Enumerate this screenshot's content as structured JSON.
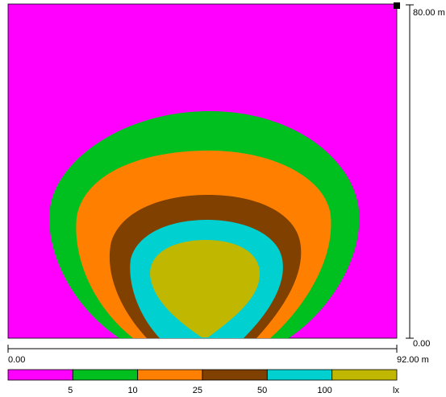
{
  "diagram": {
    "type": "isolux-contour-plot",
    "colors": {
      "magenta": "#ff00ff",
      "green": "#00c020",
      "orange": "#ff8000",
      "brown": "#804000",
      "cyan": "#00d0d0",
      "olive": "#c0b800",
      "outline": "#000000"
    },
    "vertical_axis": {
      "max_label": "80.00 m",
      "min_label": "0.00"
    },
    "horizontal_axis": {
      "min_label": "0.00",
      "max_label": "92.00 m"
    },
    "legend": {
      "thresholds": [
        "5",
        "10",
        "25",
        "50",
        "100"
      ],
      "unit": "lx",
      "swatch_colors": [
        "#ff00ff",
        "#00c020",
        "#ff8000",
        "#804000",
        "#00d0d0",
        "#c0b800"
      ]
    }
  }
}
